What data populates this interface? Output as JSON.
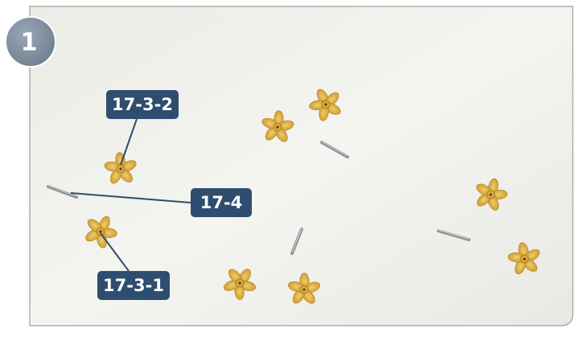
{
  "step_number": "1",
  "labels": [
    "17-3-2",
    "17-4",
    "17-3-1"
  ]
}
